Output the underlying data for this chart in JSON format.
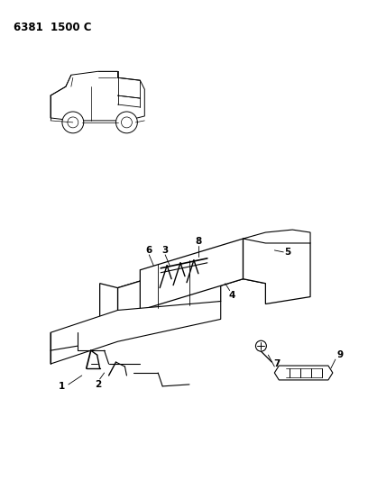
{
  "title": "6381  1500 C",
  "bg_color": "#ffffff",
  "line_color": "#000000",
  "fig_width": 4.08,
  "fig_height": 5.33,
  "dpi": 100
}
